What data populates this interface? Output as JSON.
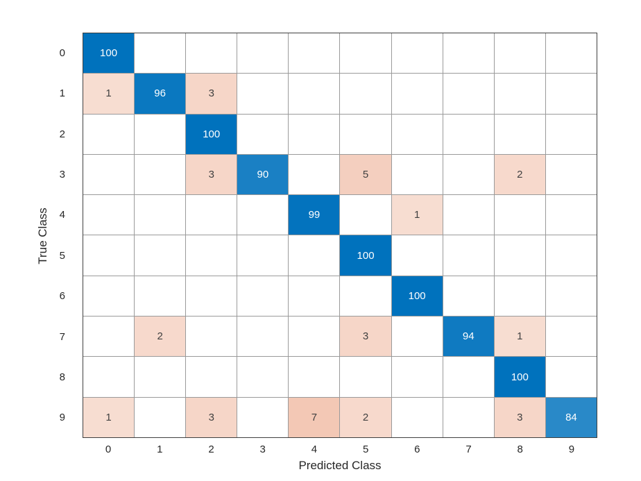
{
  "chart_data": {
    "type": "heatmap",
    "subtype": "confusion-matrix",
    "xlabel": "Predicted Class",
    "ylabel": "True Class",
    "classes": [
      "0",
      "1",
      "2",
      "3",
      "4",
      "5",
      "6",
      "7",
      "8",
      "9"
    ],
    "matrix": [
      [
        100,
        0,
        0,
        0,
        0,
        0,
        0,
        0,
        0,
        0
      ],
      [
        1,
        96,
        3,
        0,
        0,
        0,
        0,
        0,
        0,
        0
      ],
      [
        0,
        0,
        100,
        0,
        0,
        0,
        0,
        0,
        0,
        0
      ],
      [
        0,
        0,
        3,
        90,
        0,
        5,
        0,
        0,
        2,
        0
      ],
      [
        0,
        0,
        0,
        0,
        99,
        0,
        1,
        0,
        0,
        0
      ],
      [
        0,
        0,
        0,
        0,
        0,
        100,
        0,
        0,
        0,
        0
      ],
      [
        0,
        0,
        0,
        0,
        0,
        0,
        100,
        0,
        0,
        0
      ],
      [
        0,
        2,
        0,
        0,
        0,
        3,
        0,
        94,
        1,
        0
      ],
      [
        0,
        0,
        0,
        0,
        0,
        0,
        0,
        0,
        100,
        0
      ],
      [
        1,
        0,
        3,
        0,
        7,
        2,
        0,
        0,
        3,
        84
      ]
    ],
    "value_max": 100,
    "diagonal_color": "#0072BD",
    "off_diagonal_color": "#D95319",
    "empty_cell_color": "#FFFFFF",
    "grid_on": true,
    "legend_position": "none"
  }
}
